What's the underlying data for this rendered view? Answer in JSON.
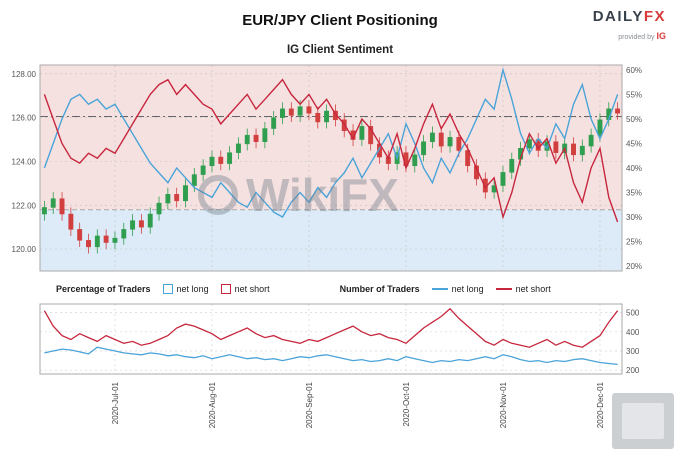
{
  "header": {
    "title": "EUR/JPY Client Positioning",
    "brand": {
      "daily": "DAILY",
      "fx": "FX",
      "provided_by": "provided by",
      "ig": "IG"
    }
  },
  "subtitle": "IG Client Sentiment",
  "legend": {
    "percentage_label": "Percentage of Traders",
    "pct_net_long": "net long",
    "pct_net_short": "net short",
    "number_label": "Number of Traders",
    "num_net_long": "net long",
    "num_net_short": "net short"
  },
  "watermark": {
    "center": "WikiFX"
  },
  "colors": {
    "net_long": "#4aa4d9",
    "net_short": "#c7273d",
    "candle_up": "#2f9e4f",
    "candle_down": "#d23f3f",
    "bg_pink": "#f6e1e1",
    "bg_blue": "#dcebf7"
  },
  "chart_data": [
    {
      "type": "candlestick",
      "title": "IG Client Sentiment",
      "x_tick_indices": [
        8,
        19,
        30,
        41,
        52,
        63
      ],
      "x_tick_labels": [
        "2020-Jul-01",
        "2020-Aug-01",
        "2020-Sep-01",
        "2020-Oct-01",
        "2020-Nov-01",
        "2020-Dec-01"
      ],
      "left_axis": {
        "min": 119.0,
        "max": 128.4,
        "ticks": [
          128,
          126,
          124,
          122,
          120
        ],
        "labels": [
          "128.00",
          "126.00",
          "124.00",
          "122.00",
          "120.00"
        ]
      },
      "right_axis": {
        "min": 19,
        "max": 61,
        "ticks": [
          60,
          55,
          50,
          45,
          40,
          35,
          30,
          25,
          20
        ],
        "labels": [
          "60%",
          "55%",
          "50%",
          "45%",
          "40%",
          "35%",
          "30%",
          "25%",
          "20%"
        ]
      },
      "bg_split_value": 31.5,
      "reference_lines": [
        {
          "value": 50.5,
          "axis": "right",
          "style": "dashdot",
          "color": "#666666"
        },
        {
          "value": 31.5,
          "axis": "right",
          "style": "dashed",
          "color": "#aaaaaa"
        }
      ],
      "candles": [
        [
          121.6,
          122.2,
          121.3,
          121.9
        ],
        [
          121.9,
          122.6,
          121.6,
          122.3
        ],
        [
          122.3,
          122.6,
          121.3,
          121.6
        ],
        [
          121.6,
          121.9,
          120.6,
          120.9
        ],
        [
          120.9,
          121.2,
          120.1,
          120.4
        ],
        [
          120.4,
          120.7,
          119.8,
          120.1
        ],
        [
          120.1,
          120.9,
          119.8,
          120.6
        ],
        [
          120.6,
          120.9,
          120.0,
          120.3
        ],
        [
          120.3,
          120.8,
          120.0,
          120.5
        ],
        [
          120.5,
          121.2,
          120.2,
          120.9
        ],
        [
          120.9,
          121.6,
          120.6,
          121.3
        ],
        [
          121.3,
          121.6,
          120.7,
          121.0
        ],
        [
          121.0,
          121.9,
          120.7,
          121.6
        ],
        [
          121.6,
          122.4,
          121.3,
          122.1
        ],
        [
          122.1,
          122.8,
          121.8,
          122.5
        ],
        [
          122.5,
          122.8,
          121.9,
          122.2
        ],
        [
          122.2,
          123.2,
          121.9,
          122.9
        ],
        [
          122.9,
          123.7,
          122.6,
          123.4
        ],
        [
          123.4,
          124.1,
          123.1,
          123.8
        ],
        [
          123.8,
          124.5,
          123.5,
          124.2
        ],
        [
          124.2,
          124.5,
          123.6,
          123.9
        ],
        [
          123.9,
          124.7,
          123.6,
          124.4
        ],
        [
          124.4,
          125.1,
          124.1,
          124.8
        ],
        [
          124.8,
          125.5,
          124.5,
          125.2
        ],
        [
          125.2,
          125.5,
          124.6,
          124.9
        ],
        [
          124.9,
          125.8,
          124.6,
          125.5
        ],
        [
          125.5,
          126.3,
          125.2,
          126.0
        ],
        [
          126.0,
          126.7,
          125.7,
          126.4
        ],
        [
          126.4,
          126.7,
          125.8,
          126.1
        ],
        [
          126.1,
          126.8,
          125.8,
          126.5
        ],
        [
          126.5,
          126.8,
          125.9,
          126.2
        ],
        [
          126.2,
          126.5,
          125.5,
          125.8
        ],
        [
          125.8,
          126.6,
          125.5,
          126.3
        ],
        [
          126.3,
          126.6,
          125.6,
          125.9
        ],
        [
          125.9,
          126.2,
          125.1,
          125.4
        ],
        [
          125.4,
          125.7,
          124.7,
          125.0
        ],
        [
          125.0,
          125.9,
          124.7,
          125.6
        ],
        [
          125.6,
          125.9,
          124.5,
          124.8
        ],
        [
          124.8,
          125.1,
          123.9,
          124.2
        ],
        [
          124.2,
          124.5,
          123.6,
          123.9
        ],
        [
          123.9,
          124.7,
          123.6,
          124.4
        ],
        [
          124.4,
          124.7,
          123.5,
          123.8
        ],
        [
          123.8,
          124.6,
          123.5,
          124.3
        ],
        [
          124.3,
          125.2,
          124.0,
          124.9
        ],
        [
          124.9,
          125.6,
          124.6,
          125.3
        ],
        [
          125.3,
          125.6,
          124.4,
          124.7
        ],
        [
          124.7,
          125.4,
          124.4,
          125.1
        ],
        [
          125.1,
          125.4,
          124.2,
          124.5
        ],
        [
          124.5,
          124.8,
          123.5,
          123.8
        ],
        [
          123.8,
          124.1,
          122.9,
          123.2
        ],
        [
          123.2,
          123.5,
          122.3,
          122.6
        ],
        [
          122.6,
          123.2,
          122.3,
          122.9
        ],
        [
          122.9,
          123.8,
          122.6,
          123.5
        ],
        [
          123.5,
          124.4,
          123.2,
          124.1
        ],
        [
          124.1,
          124.9,
          123.8,
          124.6
        ],
        [
          124.6,
          125.3,
          124.3,
          125.0
        ],
        [
          125.0,
          125.3,
          124.2,
          124.5
        ],
        [
          124.5,
          125.2,
          124.2,
          124.9
        ],
        [
          124.9,
          125.2,
          124.1,
          124.4
        ],
        [
          124.4,
          125.1,
          124.1,
          124.8
        ],
        [
          124.8,
          125.1,
          124.0,
          124.3
        ],
        [
          124.3,
          125.0,
          124.0,
          124.7
        ],
        [
          124.7,
          125.5,
          124.4,
          125.2
        ],
        [
          125.2,
          126.2,
          124.9,
          125.9
        ],
        [
          125.9,
          126.7,
          125.6,
          126.4
        ],
        [
          126.4,
          126.7,
          125.9,
          126.2
        ]
      ],
      "series": [
        {
          "name": "net-long-pct",
          "label": "net long",
          "color": "#4aa4d9",
          "values": [
            40,
            45,
            50,
            54,
            55,
            53,
            54,
            52,
            53,
            50,
            47,
            44,
            41,
            39,
            37,
            40,
            38,
            36,
            35,
            34,
            37,
            35,
            33,
            32,
            35,
            33,
            31,
            30,
            33,
            35,
            33,
            36,
            34,
            37,
            39,
            42,
            38,
            41,
            44,
            47,
            42,
            49,
            45,
            40,
            37,
            42,
            39,
            43,
            46,
            50,
            54,
            52,
            60,
            54,
            47,
            43,
            46,
            44,
            49,
            46,
            53,
            57,
            50,
            46,
            50,
            55
          ]
        },
        {
          "name": "net-short-pct",
          "label": "net short",
          "color": "#c7273d",
          "values": [
            55,
            50,
            45,
            42,
            41,
            43,
            42,
            44,
            43,
            46,
            49,
            52,
            55,
            57,
            58,
            55,
            57,
            55,
            53,
            52,
            49,
            51,
            53,
            55,
            52,
            54,
            56,
            58,
            55,
            53,
            55,
            52,
            54,
            51,
            49,
            46,
            50,
            48,
            45,
            42,
            47,
            40,
            44,
            49,
            53,
            48,
            51,
            47,
            44,
            40,
            36,
            38,
            30,
            35,
            42,
            47,
            44,
            46,
            41,
            44,
            37,
            33,
            40,
            44,
            34,
            29
          ]
        }
      ]
    },
    {
      "type": "line",
      "right_axis": {
        "min": 180,
        "max": 545,
        "ticks": [
          500,
          400,
          300,
          200
        ],
        "labels": [
          "500",
          "400",
          "300",
          "200"
        ]
      },
      "series": [
        {
          "name": "net-long-count",
          "label": "net long",
          "color": "#4aa4d9",
          "values": [
            290,
            300,
            310,
            305,
            295,
            285,
            320,
            310,
            300,
            290,
            285,
            280,
            290,
            285,
            275,
            280,
            270,
            265,
            275,
            260,
            270,
            280,
            270,
            260,
            265,
            255,
            260,
            250,
            260,
            270,
            265,
            275,
            280,
            270,
            260,
            250,
            255,
            245,
            250,
            260,
            250,
            270,
            260,
            250,
            240,
            250,
            245,
            255,
            250,
            260,
            270,
            260,
            280,
            270,
            255,
            245,
            250,
            240,
            250,
            245,
            255,
            260,
            250,
            240,
            235,
            230
          ]
        },
        {
          "name": "net-short-count",
          "label": "net short",
          "color": "#c7273d",
          "values": [
            510,
            430,
            380,
            360,
            390,
            370,
            350,
            380,
            360,
            340,
            350,
            330,
            340,
            360,
            380,
            420,
            440,
            430,
            410,
            390,
            360,
            380,
            400,
            420,
            390,
            370,
            380,
            360,
            350,
            340,
            360,
            350,
            370,
            390,
            410,
            430,
            400,
            380,
            390,
            370,
            360,
            340,
            380,
            420,
            450,
            480,
            520,
            470,
            430,
            390,
            350,
            330,
            360,
            340,
            330,
            320,
            340,
            360,
            330,
            350,
            330,
            320,
            350,
            380,
            450,
            510
          ]
        }
      ]
    }
  ]
}
